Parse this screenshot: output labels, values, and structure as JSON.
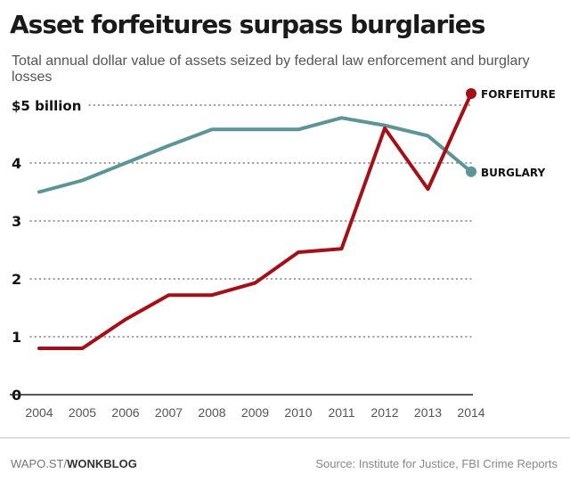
{
  "header": {
    "title": "Asset forfeitures surpass burglaries",
    "subtitle": "Total annual dollar value of assets seized by federal law enforcement and burglary losses"
  },
  "footer": {
    "credit_site": "WAPO.ST",
    "credit_sep": "/",
    "credit_section": "WONKBLOG",
    "source": "Source: Institute for Justice, FBI Crime Reports"
  },
  "colors": {
    "forfeiture": "#a50f15",
    "burglary": "#5b9597",
    "grid": "#666666",
    "axis": "#222222",
    "tick_text": "#555555",
    "y_tick_text": "#111111"
  },
  "chart_data": {
    "type": "line",
    "title": "Asset forfeitures surpass burglaries",
    "subtitle": "Total annual dollar value of assets seized by federal law enforcement and burglary losses",
    "x": [
      "2004",
      "2005",
      "2006",
      "2007",
      "2008",
      "2009",
      "2010",
      "2011",
      "2012",
      "2013",
      "2014"
    ],
    "x_tick_labels": [
      "2004",
      "2005",
      "2006",
      "2007",
      "2008",
      "2009",
      "2010",
      "2011",
      "2012",
      "2013",
      "2014"
    ],
    "y_tick_values": [
      0,
      1,
      2,
      3,
      4,
      5
    ],
    "y_tick_labels": [
      "0",
      "1",
      "2",
      "3",
      "4",
      "$5 billion"
    ],
    "ylim": [
      0,
      5.2
    ],
    "grid": "horizontal dotted",
    "legend": "direct labels at line ends",
    "series": [
      {
        "name": "FORFEITURE",
        "values": [
          0.8,
          0.8,
          1.3,
          1.72,
          1.72,
          1.93,
          2.46,
          2.52,
          4.6,
          3.55,
          5.2
        ]
      },
      {
        "name": "BURGLARY",
        "values": [
          3.5,
          3.7,
          4.0,
          4.3,
          4.58,
          4.58,
          4.58,
          4.78,
          4.65,
          4.47,
          3.85
        ]
      }
    ]
  }
}
